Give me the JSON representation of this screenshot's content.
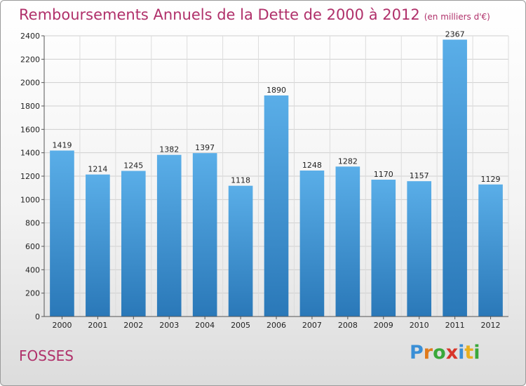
{
  "chart_data": {
    "type": "bar",
    "title": "Remboursements Annuels de la Dette de 2000 à 2012",
    "subtitle": "(en milliers d'€)",
    "categories": [
      "2000",
      "2001",
      "2002",
      "2003",
      "2004",
      "2005",
      "2006",
      "2007",
      "2008",
      "2009",
      "2010",
      "2011",
      "2012"
    ],
    "values": [
      1419,
      1214,
      1245,
      1382,
      1397,
      1118,
      1890,
      1248,
      1282,
      1170,
      1157,
      2367,
      1129
    ],
    "ylim": [
      0,
      2400
    ],
    "yticks": [
      0,
      200,
      400,
      600,
      800,
      1000,
      1200,
      1400,
      1600,
      1800,
      2000,
      2200,
      2400
    ],
    "xlabel": "",
    "ylabel": "",
    "grid": true,
    "legend": "none",
    "bar_color_top": "#5aaee8",
    "bar_color_bottom": "#2a78b8"
  },
  "footer": {
    "commune": "FOSSES",
    "brand": [
      "P",
      "r",
      "o",
      "x",
      "i",
      "t",
      "i"
    ],
    "brand_colors": [
      "#3a8fd6",
      "#e07a1c",
      "#3aa83a",
      "#d8352a",
      "#3a8fd6",
      "#e8b020",
      "#3aa83a"
    ]
  }
}
